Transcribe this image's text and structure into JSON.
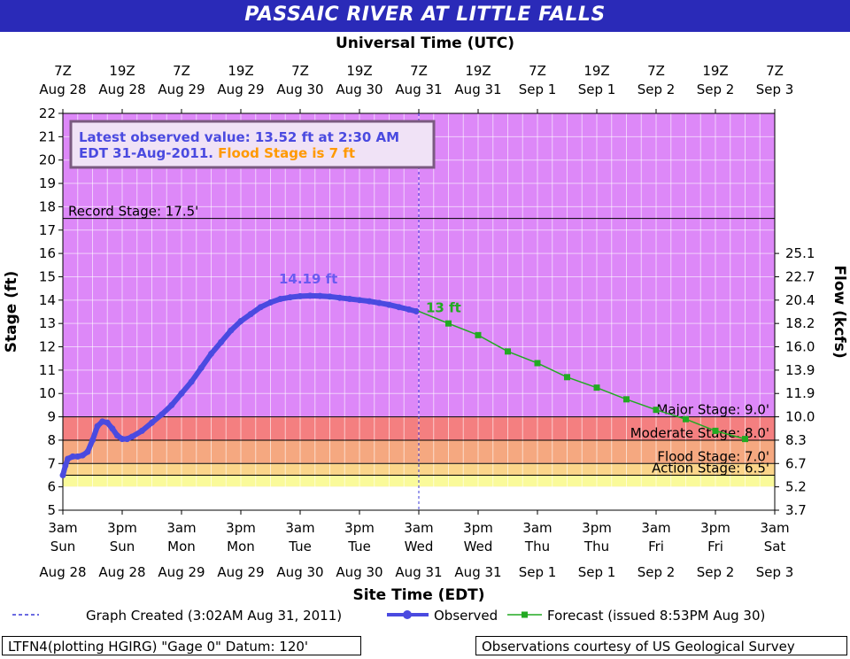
{
  "title": "PASSAIC RIVER AT LITTLE FALLS",
  "top_axis_title": "Universal Time (UTC)",
  "bottom_axis_title": "Site Time (EDT)",
  "left_axis_title": "Stage (ft)",
  "right_axis_title": "Flow (kcfs)",
  "info_box": {
    "line1": "Latest observed value: 13.52  ft at 2:30 AM",
    "line2_a": "EDT 31-Aug-2011. ",
    "line2_b": "Flood Stage is 7 ft"
  },
  "legend": {
    "graph_created": "Graph Created (3:02AM Aug 31, 2011)",
    "observed": "Observed",
    "forecast": "Forecast (issued 8:53PM Aug 30)"
  },
  "footer": {
    "left": "LTFN4(plotting HGIRG) \"Gage 0\" Datum: 120'",
    "right": "Observations courtesy of US Geological Survey"
  },
  "colors": {
    "title_band": "#2a2ab8",
    "plot_background": "#dd88f8",
    "major_band": "#f47f80",
    "moderate_band": "#f5a880",
    "flood_band": "#fbd58a",
    "action_band": "#fafa9a",
    "observed": "#4a4ae0",
    "forecast": "#22aa22",
    "peak_label": "#6a5af0"
  },
  "chart_data": {
    "type": "line",
    "y_range": [
      5,
      22
    ],
    "y_ticks": [
      5,
      6,
      7,
      8,
      9,
      10,
      11,
      12,
      13,
      14,
      15,
      16,
      17,
      18,
      19,
      20,
      21,
      22
    ],
    "right_ticks": [
      {
        "stage": 5,
        "label": "3.7"
      },
      {
        "stage": 6,
        "label": "5.2"
      },
      {
        "stage": 7,
        "label": "6.7"
      },
      {
        "stage": 8,
        "label": "8.3"
      },
      {
        "stage": 9,
        "label": "10.0"
      },
      {
        "stage": 10,
        "label": "11.9"
      },
      {
        "stage": 11,
        "label": "13.9"
      },
      {
        "stage": 12,
        "label": "16.0"
      },
      {
        "stage": 13,
        "label": "18.2"
      },
      {
        "stage": 14,
        "label": "20.4"
      },
      {
        "stage": 15,
        "label": "22.7"
      },
      {
        "stage": 16,
        "label": "25.1"
      }
    ],
    "x_ticks_bottom": [
      {
        "line1": "3am",
        "line2": "Sun",
        "line3": "Aug 28"
      },
      {
        "line1": "3pm",
        "line2": "Sun",
        "line3": "Aug 28"
      },
      {
        "line1": "3am",
        "line2": "Mon",
        "line3": "Aug 29"
      },
      {
        "line1": "3pm",
        "line2": "Mon",
        "line3": "Aug 29"
      },
      {
        "line1": "3am",
        "line2": "Tue",
        "line3": "Aug 30"
      },
      {
        "line1": "3pm",
        "line2": "Tue",
        "line3": "Aug 30"
      },
      {
        "line1": "3am",
        "line2": "Wed",
        "line3": "Aug 31"
      },
      {
        "line1": "3pm",
        "line2": "Wed",
        "line3": "Aug 31"
      },
      {
        "line1": "3am",
        "line2": "Thu",
        "line3": "Sep 1"
      },
      {
        "line1": "3pm",
        "line2": "Thu",
        "line3": "Sep 1"
      },
      {
        "line1": "3am",
        "line2": "Fri",
        "line3": "Sep 2"
      },
      {
        "line1": "3pm",
        "line2": "Fri",
        "line3": "Sep 2"
      },
      {
        "line1": "3am",
        "line2": "Sat",
        "line3": "Sep 3"
      }
    ],
    "x_ticks_top": [
      {
        "line1": "7Z",
        "line2": "Aug 28"
      },
      {
        "line1": "19Z",
        "line2": "Aug 28"
      },
      {
        "line1": "7Z",
        "line2": "Aug 29"
      },
      {
        "line1": "19Z",
        "line2": "Aug 29"
      },
      {
        "line1": "7Z",
        "line2": "Aug 30"
      },
      {
        "line1": "19Z",
        "line2": "Aug 30"
      },
      {
        "line1": "7Z",
        "line2": "Aug 31"
      },
      {
        "line1": "19Z",
        "line2": "Aug 31"
      },
      {
        "line1": "7Z",
        "line2": "Sep  1"
      },
      {
        "line1": "19Z",
        "line2": "Sep  1"
      },
      {
        "line1": "7Z",
        "line2": "Sep  2"
      },
      {
        "line1": "19Z",
        "line2": "Sep  2"
      },
      {
        "line1": "7Z",
        "line2": "Sep  3"
      }
    ],
    "stages": [
      {
        "name": "Record Stage: 17.5'",
        "value": 17.5
      },
      {
        "name": "Major Stage: 9.0'",
        "value": 9.0
      },
      {
        "name": "Moderate Stage: 8.0'",
        "value": 8.0
      },
      {
        "name": "Flood Stage: 7.0'",
        "value": 7.0
      },
      {
        "name": "Action Stage: 6.5'",
        "value": 6.5
      }
    ],
    "x_units": "hours after 3am EDT Sun Aug 28",
    "graph_created_hour": 72,
    "observed": [
      [
        0,
        6.5
      ],
      [
        0.5,
        6.9
      ],
      [
        1,
        7.2
      ],
      [
        2,
        7.3
      ],
      [
        3,
        7.3
      ],
      [
        4,
        7.35
      ],
      [
        5,
        7.5
      ],
      [
        6,
        8.0
      ],
      [
        7,
        8.6
      ],
      [
        8,
        8.8
      ],
      [
        9,
        8.75
      ],
      [
        10,
        8.5
      ],
      [
        11,
        8.2
      ],
      [
        12,
        8.05
      ],
      [
        13,
        8.05
      ],
      [
        14,
        8.15
      ],
      [
        16,
        8.4
      ],
      [
        18,
        8.75
      ],
      [
        20,
        9.1
      ],
      [
        22,
        9.5
      ],
      [
        24,
        10.0
      ],
      [
        26,
        10.5
      ],
      [
        28,
        11.1
      ],
      [
        30,
        11.7
      ],
      [
        32,
        12.2
      ],
      [
        34,
        12.7
      ],
      [
        36,
        13.1
      ],
      [
        38,
        13.4
      ],
      [
        40,
        13.7
      ],
      [
        42,
        13.9
      ],
      [
        44,
        14.05
      ],
      [
        46,
        14.12
      ],
      [
        48,
        14.17
      ],
      [
        50,
        14.19
      ],
      [
        52,
        14.18
      ],
      [
        54,
        14.15
      ],
      [
        56,
        14.1
      ],
      [
        58,
        14.05
      ],
      [
        60,
        14.0
      ],
      [
        62,
        13.95
      ],
      [
        64,
        13.88
      ],
      [
        66,
        13.8
      ],
      [
        68,
        13.7
      ],
      [
        70,
        13.6
      ],
      [
        71.5,
        13.52
      ]
    ],
    "forecast": [
      [
        72,
        13.52
      ],
      [
        78,
        13.0
      ],
      [
        84,
        12.5
      ],
      [
        90,
        11.8
      ],
      [
        96,
        11.3
      ],
      [
        102,
        10.7
      ],
      [
        108,
        10.25
      ],
      [
        114,
        9.75
      ],
      [
        120,
        9.3
      ],
      [
        126,
        8.9
      ],
      [
        132,
        8.4
      ],
      [
        138,
        8.05
      ]
    ],
    "peak_label": "14.19 ft",
    "peak_point": [
      50,
      14.19
    ],
    "forecast_label": "13 ft"
  }
}
